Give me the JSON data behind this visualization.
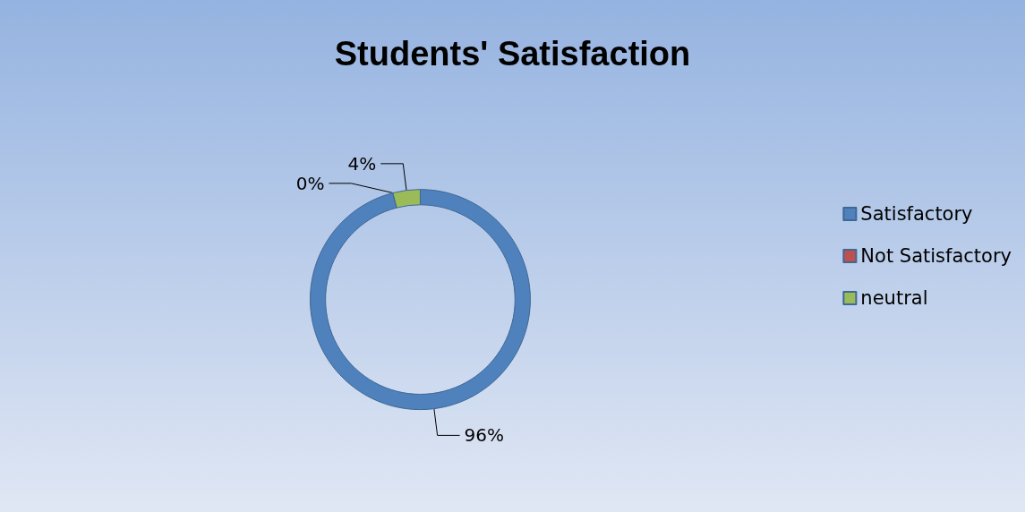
{
  "chart_data": {
    "type": "donut",
    "title": "Students' Satisfaction",
    "categories": [
      "Satisfactory",
      "Not Satisfactory",
      "neutral"
    ],
    "values": [
      96,
      0,
      4
    ],
    "colors": [
      "#4f81bd",
      "#c0504d",
      "#9bbb59"
    ],
    "value_labels": [
      "96%",
      "0%",
      "4%"
    ],
    "legend": "right"
  }
}
